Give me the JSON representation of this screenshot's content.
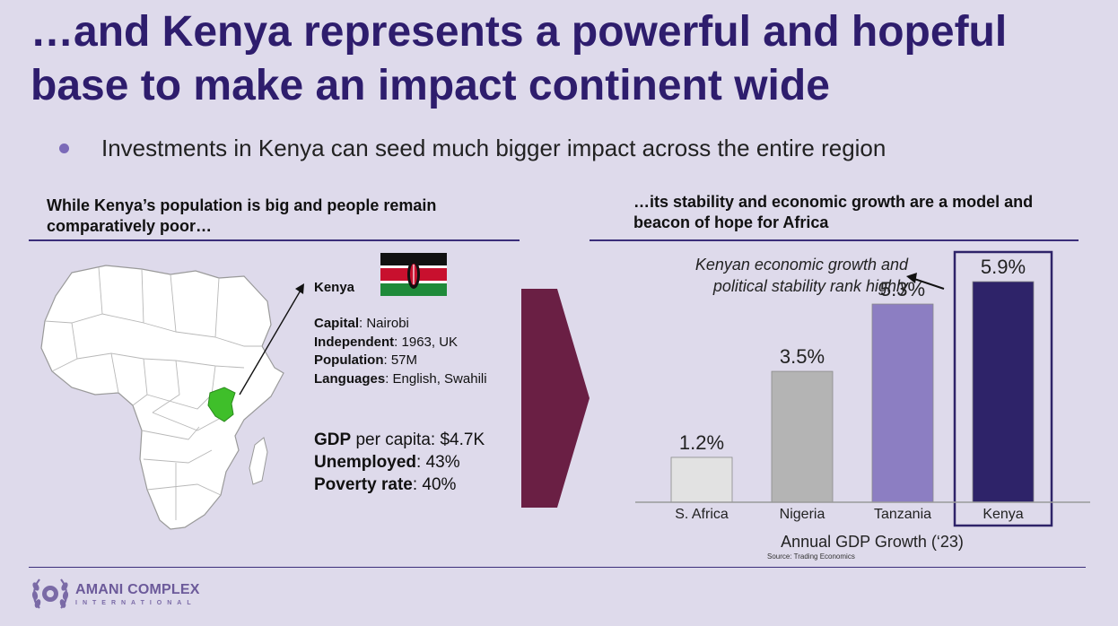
{
  "title": "…and Kenya represents a powerful and hopeful base to make an impact continent wide",
  "bullet": "Investments in Kenya can seed much bigger impact across the entire region",
  "left_section": {
    "heading": "While Kenya’s population is big and people remain comparatively poor…",
    "country": "Kenya",
    "facts": [
      {
        "label": "Capital",
        "value": ": Nairobi"
      },
      {
        "label": "Independent",
        "value": ": 1963, UK"
      },
      {
        "label": "Population",
        "value": ": 57M"
      },
      {
        "label": "Languages",
        "value": ": English, Swahili"
      }
    ],
    "econ": [
      {
        "label": "GDP",
        "value": " per capita: $4.7K"
      },
      {
        "label": "Unemployed",
        "value": ": 43%"
      },
      {
        "label": "Poverty rate",
        "value": ": 40%"
      }
    ]
  },
  "right_section": {
    "heading": "…its stability and economic growth are a model and beacon of hope for Africa",
    "annotation": "Kenyan economic growth and political stability rank highly"
  },
  "chart_data": {
    "type": "bar",
    "categories": [
      "S. Africa",
      "Nigeria",
      "Tanzania",
      "Kenya"
    ],
    "values": [
      1.2,
      3.5,
      5.3,
      5.9
    ],
    "value_labels": [
      "1.2%",
      "3.5%",
      "5.3%",
      "5.9%"
    ],
    "colors": [
      "#e2e2e2",
      "#b4b4b4",
      "#8c7ec2",
      "#2e2369"
    ],
    "xlabel": "Annual GDP Growth (‘23)",
    "ylabel": "",
    "ylim": [
      0,
      5.9
    ],
    "highlight": "Kenya",
    "source": "Source: Trading Economics"
  },
  "colors": {
    "background": "#dedaeb",
    "title": "#2e1d6d",
    "accent_arrow": "#6a1f44",
    "kenya_map": "#3fbf2a"
  },
  "footer": {
    "logo_main": "AMANI COMPLEX",
    "logo_sub": "INTERNATIONAL"
  }
}
